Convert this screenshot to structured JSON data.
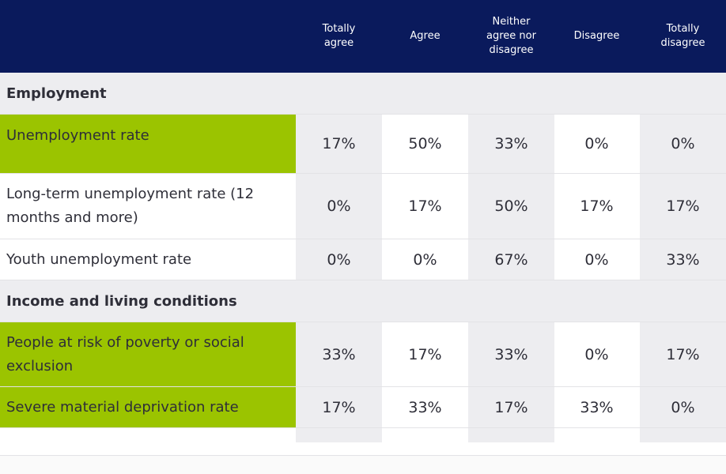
{
  "columns": [
    "Totally\nagree",
    "Agree",
    "Neither\nagree nor\ndisagree",
    "Disagree",
    "Totally\ndisagree"
  ],
  "sections": [
    {
      "title": "Employment",
      "rows": [
        {
          "label": "Unemployment rate",
          "values": [
            "17%",
            "50%",
            "33%",
            "0%",
            "0%"
          ],
          "highlight": true
        },
        {
          "label": "Long-term unemployment rate (12 months and more)",
          "values": [
            "0%",
            "17%",
            "50%",
            "17%",
            "17%"
          ],
          "highlight": false
        },
        {
          "label": "Youth unemployment rate",
          "values": [
            "0%",
            "0%",
            "67%",
            "0%",
            "33%"
          ],
          "highlight": false
        }
      ]
    },
    {
      "title": "Income and living conditions",
      "rows": [
        {
          "label": "People at risk of poverty or social exclusion",
          "values": [
            "33%",
            "17%",
            "33%",
            "0%",
            "17%"
          ],
          "highlight": true
        },
        {
          "label": "Severe material deprivation rate",
          "values": [
            "17%",
            "33%",
            "17%",
            "33%",
            "0%"
          ],
          "highlight": true
        }
      ]
    }
  ],
  "colors": {
    "header": "#0a1a5c",
    "highlight": "#9bc400",
    "shade": "#ededf0"
  },
  "chart_data": {
    "type": "table",
    "columns": [
      "Totally agree",
      "Agree",
      "Neither agree nor disagree",
      "Disagree",
      "Totally disagree"
    ],
    "rows": [
      {
        "section": "Employment",
        "name": "Unemployment rate",
        "values": [
          17,
          50,
          33,
          0,
          0
        ]
      },
      {
        "section": "Employment",
        "name": "Long-term unemployment rate (12 months and more)",
        "values": [
          0,
          17,
          50,
          17,
          17
        ]
      },
      {
        "section": "Employment",
        "name": "Youth unemployment rate",
        "values": [
          0,
          0,
          67,
          0,
          33
        ]
      },
      {
        "section": "Income and living conditions",
        "name": "People at risk of poverty or social exclusion",
        "values": [
          33,
          17,
          33,
          0,
          17
        ]
      },
      {
        "section": "Income and living conditions",
        "name": "Severe material deprivation rate",
        "values": [
          17,
          33,
          17,
          33,
          0
        ]
      }
    ],
    "unit": "%"
  }
}
